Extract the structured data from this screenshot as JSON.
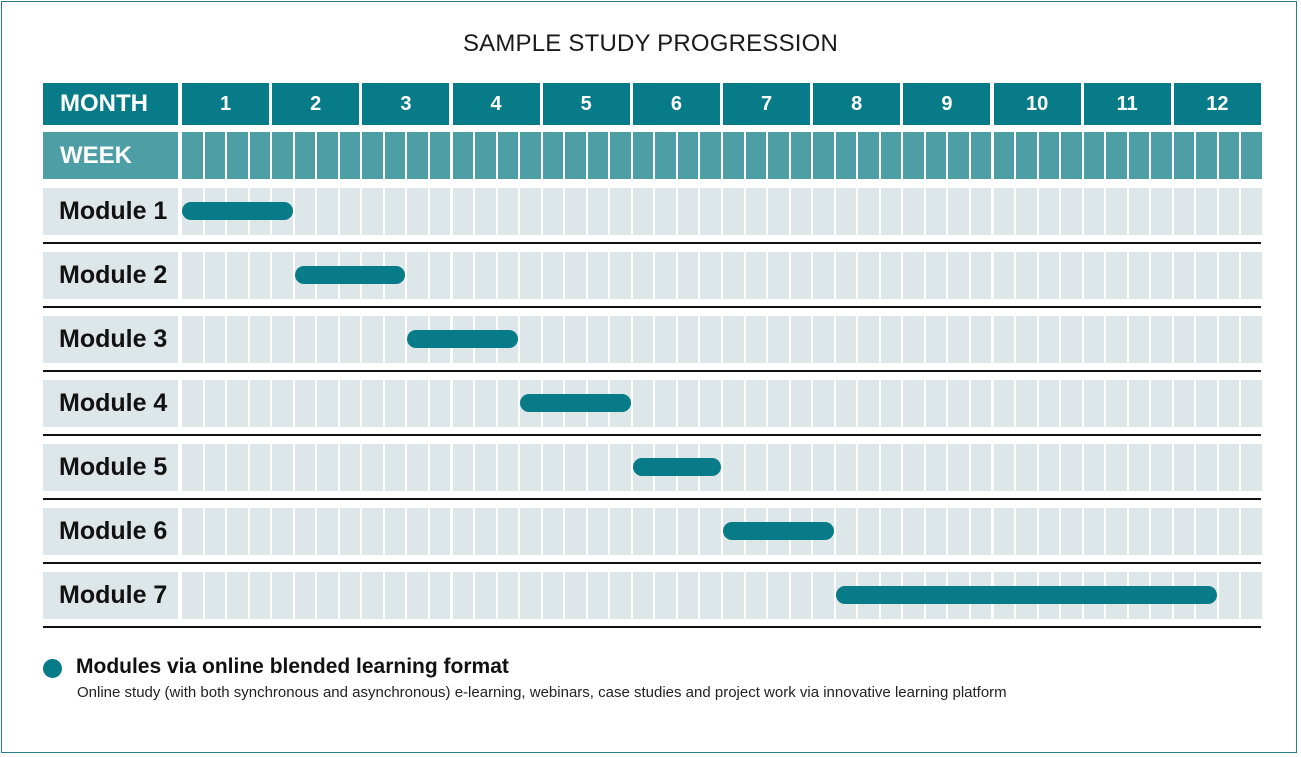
{
  "chart_data": {
    "type": "gantt",
    "title": "SAMPLE STUDY PROGRESSION",
    "header_month_label": "MONTH",
    "header_week_label": "WEEK",
    "months": [
      "1",
      "2",
      "3",
      "4",
      "5",
      "6",
      "7",
      "8",
      "9",
      "10",
      "11",
      "12"
    ],
    "weeks_per_month": 4,
    "tasks": [
      {
        "name": "Module 1",
        "start_week": 1,
        "end_week": 5
      },
      {
        "name": "Module 2",
        "start_week": 6,
        "end_week": 10
      },
      {
        "name": "Module 3",
        "start_week": 11,
        "end_week": 15
      },
      {
        "name": "Module 4",
        "start_week": 16,
        "end_week": 20
      },
      {
        "name": "Module 5",
        "start_week": 21,
        "end_week": 24
      },
      {
        "name": "Module 6",
        "start_week": 25,
        "end_week": 29
      },
      {
        "name": "Module 7",
        "start_week": 30,
        "end_week": 46
      }
    ],
    "colors": {
      "header": "#077c88",
      "week_header": "#4e9ea6",
      "grid": "#dde6e8",
      "bar": "#077c88"
    }
  },
  "legend": {
    "title": "Modules via online blended learning format",
    "description": "Online study (with both synchronous and asynchronous) e-learning, webinars, case studies and project work via innovative learning platform"
  }
}
